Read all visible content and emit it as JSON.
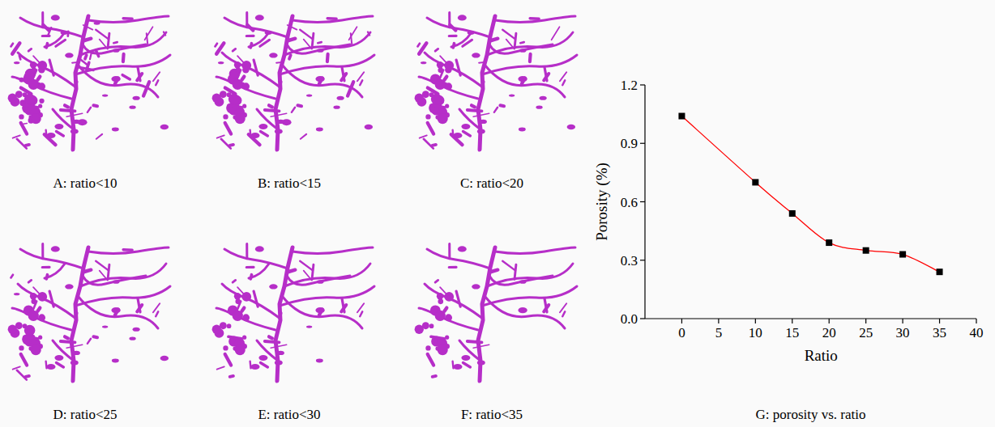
{
  "panels": [
    "A: ratio<10",
    "B: ratio<15",
    "C: ratio<20",
    "D: ratio<25",
    "E: ratio<30",
    "F: ratio<35"
  ],
  "chart_data": {
    "type": "line",
    "title": "G: porosity vs. ratio",
    "x": [
      0,
      10,
      15,
      20,
      25,
      30,
      35
    ],
    "series": [
      {
        "values": [
          1.04,
          0.7,
          0.54,
          0.39,
          0.35,
          0.33,
          0.24
        ],
        "color": "#ff0000",
        "marker": "square",
        "line_style": "smooth"
      }
    ],
    "xlabel": "Ratio",
    "ylabel": "Porosity (%)",
    "xlim": [
      -5,
      40
    ],
    "xticks": [
      0,
      5,
      10,
      15,
      20,
      25,
      30,
      35,
      40
    ],
    "ylim": [
      0,
      1.2
    ],
    "yticks": [
      {
        "value": 0,
        "label": "0.0"
      },
      0.3,
      0.6,
      0.9,
      1.2
    ]
  }
}
